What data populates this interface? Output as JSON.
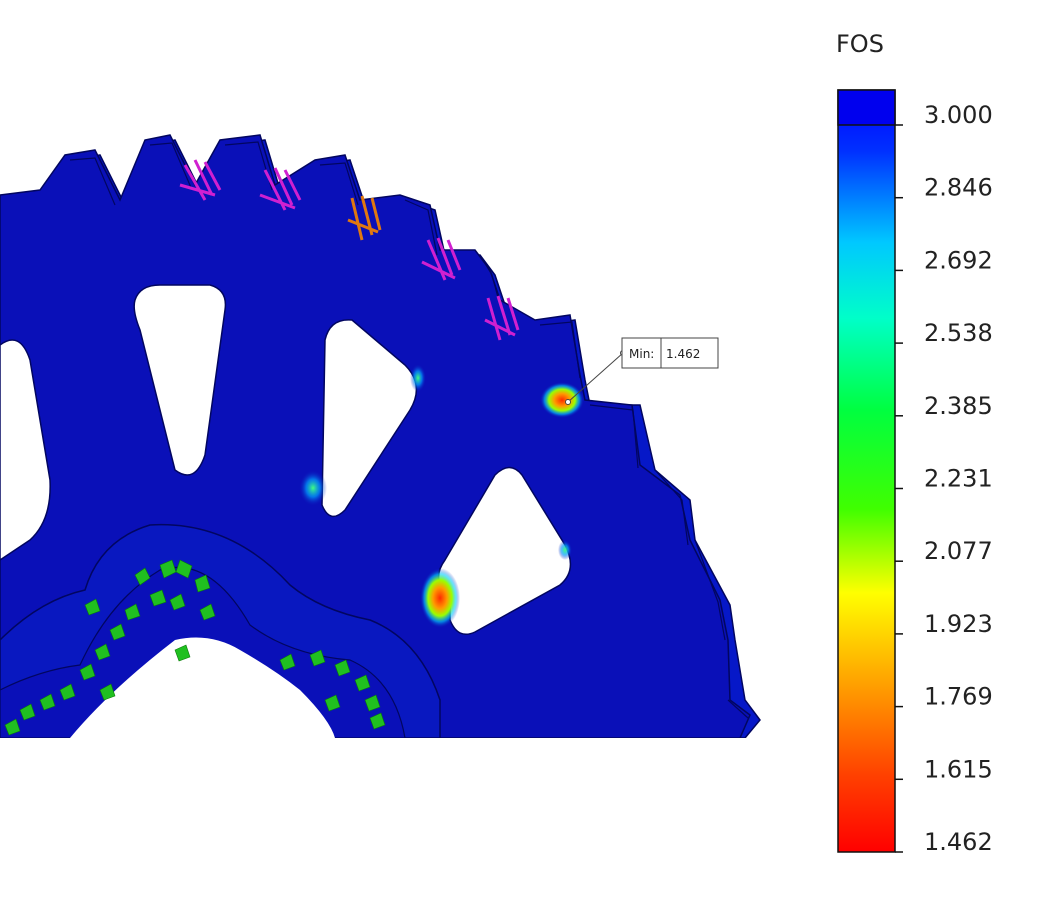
{
  "legend": {
    "title": "FOS",
    "ticks": [
      "3.000",
      "2.846",
      "2.692",
      "2.538",
      "2.385",
      "2.231",
      "2.077",
      "1.923",
      "1.769",
      "1.615",
      "1.462"
    ],
    "max_value": 3.0,
    "min_value": 1.462,
    "colors": [
      "#0000ff",
      "#0050ff",
      "#00d8ff",
      "#00ff80",
      "#00ee00",
      "#80ff00",
      "#ffff00",
      "#ffa500",
      "#ff5000",
      "#ff0000"
    ]
  },
  "probe": {
    "label": "Min:",
    "value": "1.462"
  },
  "colors": {
    "gear_fill": "#0a10b8",
    "gear_edge": "#020660",
    "gear_side": "#0a18d0",
    "load_arrow": "#d020d0",
    "load_arrow_alt": "#e07810",
    "fixture": "#20c020"
  }
}
